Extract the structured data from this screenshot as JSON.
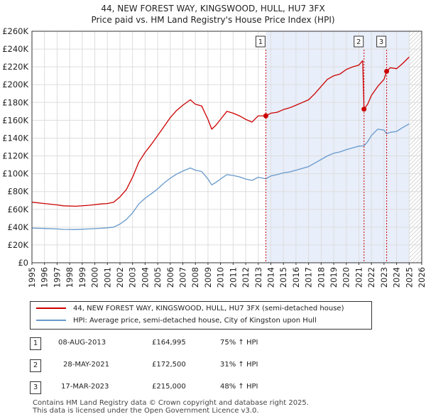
{
  "chart_data": {
    "type": "line",
    "title": "44, NEW FOREST WAY, KINGSWOOD, HULL, HU7 3FX",
    "subtitle": "Price paid vs. HM Land Registry's House Price Index (HPI)",
    "xlabel": "",
    "ylabel": "",
    "xlim": [
      1995,
      2026
    ],
    "ylim": [
      0,
      260000
    ],
    "grid": true,
    "x_ticks": [
      "1995",
      "1996",
      "1997",
      "1998",
      "1999",
      "2000",
      "2001",
      "2002",
      "2003",
      "2004",
      "2005",
      "2006",
      "2007",
      "2008",
      "2009",
      "2010",
      "2011",
      "2012",
      "2013",
      "2014",
      "2015",
      "2016",
      "2017",
      "2018",
      "2019",
      "2020",
      "2021",
      "2022",
      "2023",
      "2024",
      "2025",
      "2026"
    ],
    "y_ticks": [
      {
        "value": 0,
        "label": "£0"
      },
      {
        "value": 20000,
        "label": "£20K"
      },
      {
        "value": 40000,
        "label": "£40K"
      },
      {
        "value": 60000,
        "label": "£60K"
      },
      {
        "value": 80000,
        "label": "£80K"
      },
      {
        "value": 100000,
        "label": "£100K"
      },
      {
        "value": 120000,
        "label": "£120K"
      },
      {
        "value": 140000,
        "label": "£140K"
      },
      {
        "value": 160000,
        "label": "£160K"
      },
      {
        "value": 180000,
        "label": "£180K"
      },
      {
        "value": 200000,
        "label": "£200K"
      },
      {
        "value": 220000,
        "label": "£220K"
      },
      {
        "value": 240000,
        "label": "£240K"
      },
      {
        "value": 260000,
        "label": "£260K"
      }
    ],
    "series": [
      {
        "name": "44, NEW FOREST WAY, KINGSWOOD, HULL, HU7 3FX (semi-detached house)",
        "color": "#cc0000",
        "x": [
          1995.0,
          1996.0,
          1997.0,
          1997.5,
          1998.5,
          1999.5,
          2000.5,
          2001.0,
          2001.5,
          2002.0,
          2002.5,
          2003.0,
          2003.5,
          2004.0,
          2004.5,
          2005.0,
          2005.5,
          2006.0,
          2006.5,
          2007.0,
          2007.6,
          2008.0,
          2008.5,
          2009.0,
          2009.3,
          2009.6,
          2010.0,
          2010.5,
          2011.0,
          2011.5,
          2012.0,
          2012.5,
          2013.0,
          2013.6,
          2014.0,
          2014.5,
          2015.0,
          2015.5,
          2016.0,
          2016.5,
          2017.0,
          2017.5,
          2018.0,
          2018.5,
          2019.0,
          2019.5,
          2020.0,
          2020.5,
          2021.0,
          2021.3,
          2021.41,
          2021.7,
          2022.0,
          2022.5,
          2023.0,
          2023.21,
          2023.5,
          2024.0,
          2024.5,
          2025.0
        ],
        "y": [
          68000,
          66500,
          65000,
          64000,
          63500,
          64500,
          66000,
          66500,
          68000,
          74000,
          82000,
          96000,
          113000,
          124000,
          133000,
          143000,
          153000,
          163000,
          171000,
          177000,
          183000,
          178000,
          176000,
          161000,
          150000,
          154000,
          161000,
          170000,
          168000,
          165000,
          161000,
          158000,
          165000,
          164995,
          168000,
          169000,
          172000,
          174000,
          177000,
          180000,
          183000,
          190000,
          198000,
          206000,
          210000,
          212000,
          217000,
          220000,
          222000,
          227000,
          172500,
          178000,
          188000,
          198000,
          206000,
          215000,
          219000,
          218000,
          224000,
          231000
        ]
      },
      {
        "name": "HPI: Average price, semi-detached house, City of Kingston upon Hull",
        "color": "#6699cc",
        "x": [
          1995.0,
          1996.0,
          1997.0,
          1997.5,
          1998.5,
          1999.5,
          2000.5,
          2001.0,
          2001.5,
          2002.0,
          2002.5,
          2003.0,
          2003.5,
          2004.0,
          2004.5,
          2005.0,
          2005.5,
          2006.0,
          2006.5,
          2007.0,
          2007.6,
          2008.0,
          2008.5,
          2009.0,
          2009.3,
          2009.6,
          2010.0,
          2010.5,
          2011.0,
          2011.5,
          2012.0,
          2012.5,
          2013.0,
          2013.6,
          2014.0,
          2014.5,
          2015.0,
          2015.5,
          2016.0,
          2016.5,
          2017.0,
          2017.5,
          2018.0,
          2018.5,
          2019.0,
          2019.5,
          2020.0,
          2020.5,
          2021.0,
          2021.41,
          2021.7,
          2022.0,
          2022.5,
          2023.0,
          2023.21,
          2023.5,
          2024.0,
          2024.5,
          2025.0
        ],
        "y": [
          39000,
          38500,
          38000,
          37500,
          37300,
          38000,
          38800,
          39200,
          40000,
          43500,
          48500,
          56000,
          66000,
          72500,
          77500,
          83000,
          89500,
          95000,
          99500,
          103000,
          106500,
          104000,
          102500,
          94000,
          87500,
          90000,
          94000,
          99000,
          98000,
          96500,
          94000,
          92500,
          96000,
          94300,
          97500,
          99000,
          101000,
          102000,
          104000,
          106000,
          108000,
          112000,
          116000,
          120000,
          123000,
          124500,
          127000,
          129000,
          131000,
          131300,
          136000,
          143000,
          150000,
          149000,
          145000,
          146500,
          147500,
          152000,
          156000
        ]
      }
    ],
    "transactions": [
      {
        "label": "1",
        "x": 2013.6,
        "date": "08-AUG-2013",
        "price": "£164,995",
        "value": 164995,
        "hpi": "75% ↑ HPI"
      },
      {
        "label": "2",
        "x": 2021.41,
        "date": "28-MAY-2021",
        "price": "£172,500",
        "value": 172500,
        "hpi": "31% ↑ HPI"
      },
      {
        "label": "3",
        "x": 2023.21,
        "date": "17-MAR-2023",
        "price": "£215,000",
        "value": 215000,
        "hpi": "48% ↑ HPI"
      }
    ]
  },
  "legend": {
    "property": "44, NEW FOREST WAY, KINGSWOOD, HULL, HU7 3FX (semi-detached house)",
    "hpi": "HPI: Average price, semi-detached house, City of Kingston upon Hull"
  },
  "colors": {
    "property": "#cc0000",
    "hpi": "#6699cc",
    "highlight": "#e8eefa",
    "hatch": "#bbbbbb"
  },
  "footer": {
    "line1": "Contains HM Land Registry data © Crown copyright and database right 2025.",
    "line2": "This data is licensed under the Open Government Licence v3.0."
  }
}
